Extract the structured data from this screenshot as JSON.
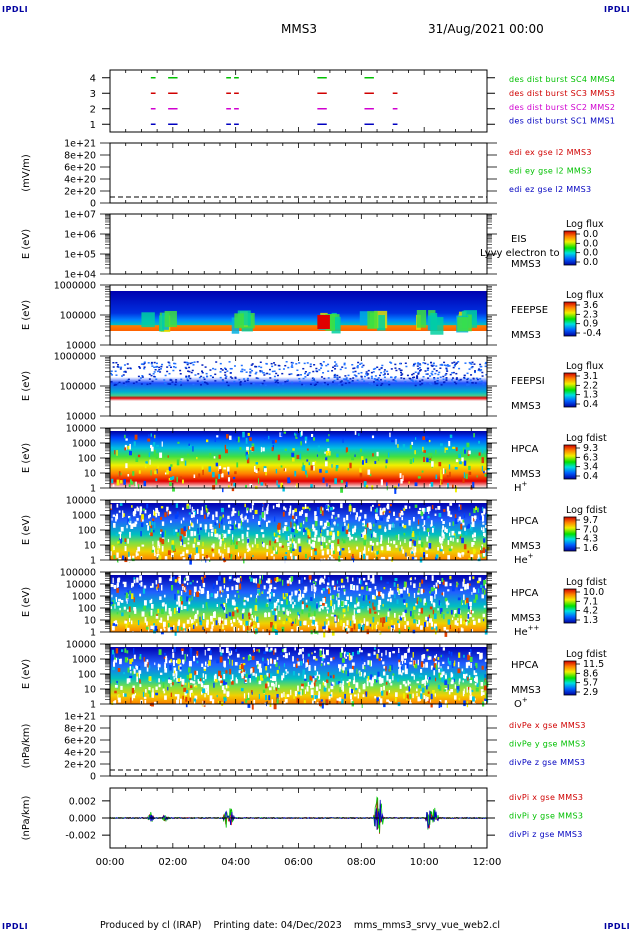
{
  "corners": {
    "top_left": "IPDLI",
    "top_right": "IPDLI",
    "bottom_left": "IPDLI",
    "bottom_right": "IPDLI"
  },
  "header": {
    "mission": "MMS3",
    "date": "31/Aug/2021 00:00"
  },
  "footer": {
    "text": "Produced by cl (IRAP)    Printing date: 04/Dec/2023    mms_mms3_srvy_vue_web2.cl"
  },
  "time_axis": {
    "ticks": [
      "00:00",
      "02:00",
      "04:00",
      "06:00",
      "08:00",
      "10:00",
      "12:00"
    ],
    "range_hours": [
      0,
      12
    ]
  },
  "colors": {
    "red": "#d00000",
    "green": "#00c000",
    "blue": "#0000c0",
    "magenta": "#d000d0"
  },
  "chart_data": [
    {
      "type": "scatter",
      "panel": "burst",
      "yticks": [
        "4",
        "3",
        "2",
        "1"
      ],
      "ylim": [
        0.5,
        4.5
      ],
      "series": [
        {
          "name": "des dist burst SC1 MMS1",
          "color": "#0000c0",
          "level": 1,
          "intervals_h": [
            [
              1.3,
              1.45
            ],
            [
              1.85,
              2.15
            ],
            [
              3.7,
              3.85
            ],
            [
              3.95,
              4.1
            ],
            [
              6.6,
              6.9
            ],
            [
              8.1,
              8.4
            ],
            [
              9.0,
              9.15
            ]
          ]
        },
        {
          "name": "des dist burst SC2 MMS2",
          "color": "#d000d0",
          "level": 2,
          "intervals_h": [
            [
              1.3,
              1.45
            ],
            [
              1.85,
              2.15
            ],
            [
              3.7,
              3.85
            ],
            [
              3.95,
              4.1
            ],
            [
              6.6,
              6.9
            ],
            [
              8.1,
              8.4
            ],
            [
              9.0,
              9.15
            ]
          ]
        },
        {
          "name": "des dist burst SC3 MMS3",
          "color": "#d00000",
          "level": 3,
          "intervals_h": [
            [
              1.3,
              1.45
            ],
            [
              1.85,
              2.15
            ],
            [
              3.7,
              3.85
            ],
            [
              3.95,
              4.1
            ],
            [
              6.6,
              6.9
            ],
            [
              8.1,
              8.4
            ],
            [
              9.0,
              9.15
            ]
          ]
        },
        {
          "name": "des dist burst SC4 MMS4",
          "color": "#00c000",
          "level": 4,
          "intervals_h": [
            [
              1.3,
              1.45
            ],
            [
              1.85,
              2.15
            ],
            [
              3.7,
              3.85
            ],
            [
              3.95,
              4.1
            ],
            [
              6.6,
              6.9
            ],
            [
              8.1,
              8.4
            ]
          ]
        }
      ]
    },
    {
      "type": "line",
      "panel": "edi",
      "ylabel": "(mV/m)",
      "yticks": [
        "1e+21",
        "8e+20",
        "6e+20",
        "4e+20",
        "2e+20",
        "0"
      ],
      "ylim": [
        0,
        1e+21
      ],
      "series": [
        {
          "name": "edi ex gse l2 MMS3",
          "color": "#d00000"
        },
        {
          "name": "edi ey gse l2 MMS3",
          "color": "#00c000"
        },
        {
          "name": "edi ez gse l2 MMS3",
          "color": "#0000c0"
        }
      ]
    },
    {
      "type": "heatmap",
      "panel": "eis",
      "ylabel": "E (eV)",
      "yticks": [
        "1e+07",
        "1e+06",
        "1e+05",
        "1e+04"
      ],
      "ylog": true,
      "instrument": "EIS",
      "spacecraft": "MMS3",
      "overlay": "Lyvy electron to",
      "colorbar": {
        "title": "Log flux",
        "ticks": [
          "0.0",
          "0.0",
          "0.0",
          "0.0"
        ]
      }
    },
    {
      "type": "heatmap",
      "panel": "feepse",
      "ylabel": "E (eV)",
      "yticks": [
        "1000000",
        "100000",
        "10000"
      ],
      "ylog": true,
      "instrument": "FEEPSE",
      "spacecraft": "MMS3",
      "colorbar": {
        "title": "Log flux",
        "ticks": [
          "3.6",
          "2.3",
          "0.9",
          "-0.4"
        ]
      }
    },
    {
      "type": "heatmap",
      "panel": "feepsi",
      "ylabel": "E (eV)",
      "yticks": [
        "1000000",
        "100000",
        "10000"
      ],
      "ylog": true,
      "instrument": "FEEPSI",
      "spacecraft": "MMS3",
      "colorbar": {
        "title": "Log flux",
        "ticks": [
          "3.1",
          "2.2",
          "1.3",
          "0.4"
        ]
      }
    },
    {
      "type": "heatmap",
      "panel": "hpca_h",
      "ylabel": "E (eV)",
      "yticks": [
        "10000",
        "1000",
        "100",
        "10",
        "1"
      ],
      "ylog": true,
      "instrument": "HPCA",
      "spacecraft": "MMS3",
      "species": "H",
      "species_sup": "+",
      "colorbar": {
        "title": "Log fdist",
        "ticks": [
          "9.3",
          "6.3",
          "3.4",
          "0.4"
        ]
      }
    },
    {
      "type": "heatmap",
      "panel": "hpca_he",
      "ylabel": "E (eV)",
      "yticks": [
        "10000",
        "1000",
        "100",
        "10",
        "1"
      ],
      "ylog": true,
      "instrument": "HPCA",
      "spacecraft": "MMS3",
      "species": "He",
      "species_sup": "+",
      "colorbar": {
        "title": "Log fdist",
        "ticks": [
          "9.7",
          "7.0",
          "4.3",
          "1.6"
        ]
      }
    },
    {
      "type": "heatmap",
      "panel": "hpca_he2",
      "ylabel": "E (eV)",
      "yticks": [
        "100000",
        "10000",
        "1000",
        "100",
        "10",
        "1"
      ],
      "ylog": true,
      "instrument": "HPCA",
      "spacecraft": "MMS3",
      "species": "He",
      "species_sup": "++",
      "colorbar": {
        "title": "Log fdist",
        "ticks": [
          "10.0",
          "7.1",
          "4.2",
          "1.3"
        ]
      }
    },
    {
      "type": "heatmap",
      "panel": "hpca_o",
      "ylabel": "E (eV)",
      "yticks": [
        "10000",
        "1000",
        "100",
        "10",
        "1"
      ],
      "ylog": true,
      "instrument": "HPCA",
      "spacecraft": "MMS3",
      "species": "O",
      "species_sup": "+",
      "colorbar": {
        "title": "Log fdist",
        "ticks": [
          "11.5",
          "8.6",
          "5.7",
          "2.9"
        ]
      }
    },
    {
      "type": "line",
      "panel": "divpe",
      "ylabel": "(nPa/km)",
      "yticks": [
        "1e+21",
        "8e+20",
        "6e+20",
        "4e+20",
        "2e+20",
        "0"
      ],
      "ylim": [
        0,
        1e+21
      ],
      "series": [
        {
          "name": "divPe x gse MMS3",
          "color": "#d00000"
        },
        {
          "name": "divPe y gse MMS3",
          "color": "#00c000"
        },
        {
          "name": "divPe z gse MMS3",
          "color": "#0000c0"
        }
      ]
    },
    {
      "type": "line",
      "panel": "divpi",
      "ylabel": "(nPa/km)",
      "yticks": [
        "0.002",
        "0.000",
        "-0.002"
      ],
      "ylim": [
        -0.0035,
        0.0035
      ],
      "series": [
        {
          "name": "divPi x gse MMS3",
          "color": "#d00000"
        },
        {
          "name": "divPi y gse MMS3",
          "color": "#00c000"
        },
        {
          "name": "divPi z gse MMS3",
          "color": "#0000c0"
        }
      ]
    }
  ]
}
